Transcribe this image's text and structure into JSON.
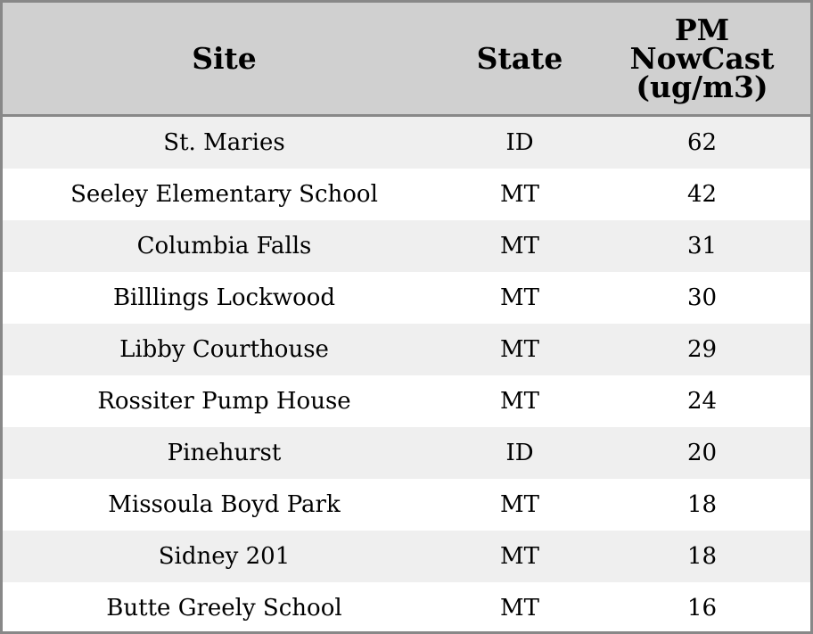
{
  "table": {
    "headers": [
      "Site",
      "State",
      "PM NowCast (ug/m3)"
    ],
    "rows": [
      [
        "St. Maries",
        "ID",
        62
      ],
      [
        "Seeley Elementary School",
        "MT",
        42
      ],
      [
        "Columbia Falls",
        "MT",
        31
      ],
      [
        "Billlings Lockwood",
        "MT",
        30
      ],
      [
        "Libby Courthouse",
        "MT",
        29
      ],
      [
        "Rossiter Pump House",
        "MT",
        24
      ],
      [
        "Pinehurst",
        "ID",
        20
      ],
      [
        "Missoula Boyd Park",
        "MT",
        18
      ],
      [
        "Sidney 201",
        "MT",
        18
      ],
      [
        "Butte Greely School",
        "MT",
        16
      ]
    ]
  }
}
